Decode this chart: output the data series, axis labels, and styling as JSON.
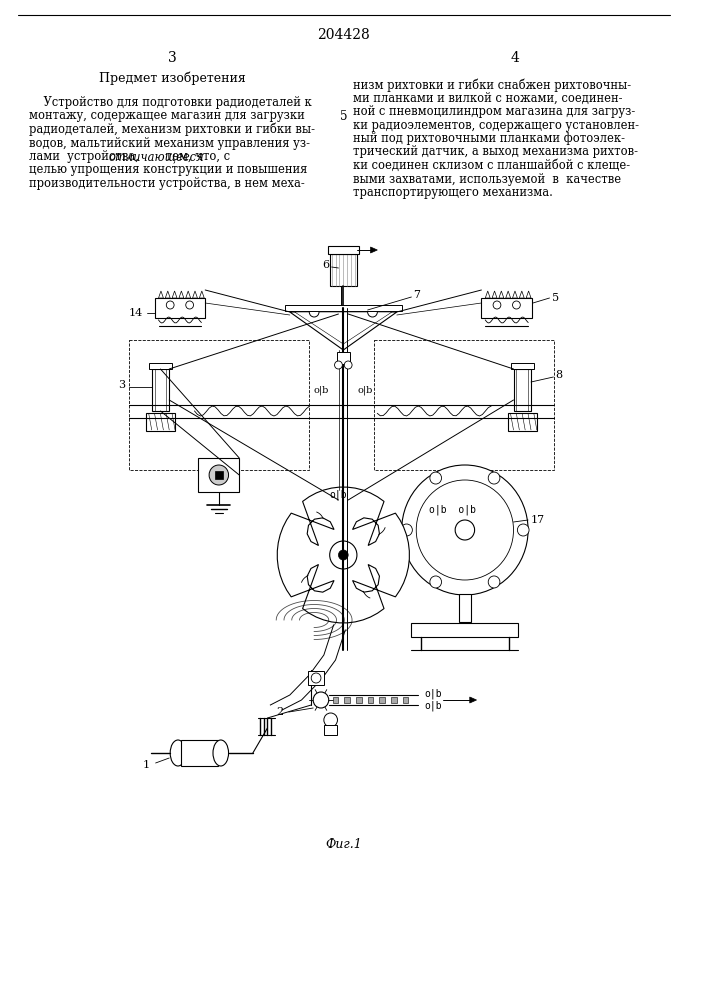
{
  "patent_number": "204428",
  "page_left": "3",
  "page_right": "4",
  "section_title": "Предмет изобретения",
  "fig_label": "Фиг.1",
  "left_text_lines": [
    "    Устройство для подготовки радиодеталей к",
    "монтажу, содержащее магазин для загрузки",
    "радиодеталей, механизм рихтовки и гибки вы-",
    "водов, мальтийский механизм управления уз-",
    "лами  устройства, отличающееся тем, что, с",
    "целью упрощения конструкции и повышения",
    "производительности устройства, в нем меха-"
  ],
  "left_italic_word": "отличающееся",
  "right_text_lines": [
    "низм рихтовки и гибки снабжен рихтовочны-",
    "ми планками и вилкой с ножами, соединен-",
    "ной с пневмоцилиндром магазина для загруз-",
    "ки радиоэлементов, содержащего установлен-",
    "ный под рихтовочными планками фотоэлек-",
    "трический датчик, а выход механизма рихтов-",
    "ки соединен склизом с планшайбой с клеще-",
    "выми захватами, используемой  в  качестве",
    "транспортирующего механизма."
  ],
  "margin_number": "5",
  "bg": "#ffffff",
  "fg": "#000000"
}
